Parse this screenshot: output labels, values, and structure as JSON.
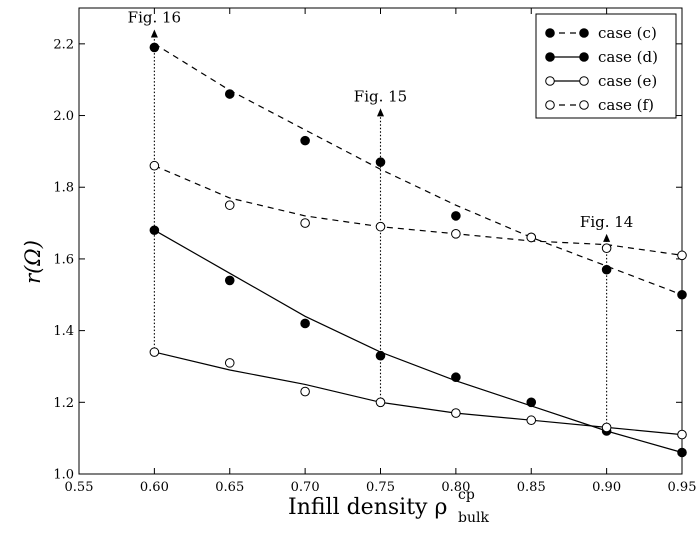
{
  "chart_data": {
    "type": "line",
    "xlabel": "Infill density ρ",
    "xlabel_sup": "cp",
    "xlabel_sub": "bulk",
    "ylabel": "r(Ω)",
    "xlim": [
      0.55,
      0.95
    ],
    "ylim": [
      1.0,
      2.3
    ],
    "xticks": [
      0.55,
      0.6,
      0.65,
      0.7,
      0.75,
      0.8,
      0.85,
      0.9,
      0.95
    ],
    "xtick_labels": [
      "0.55",
      "0.60",
      "0.65",
      "0.70",
      "0.75",
      "0.80",
      "0.85",
      "0.90",
      "0.95"
    ],
    "yticks": [
      1.0,
      1.2,
      1.4,
      1.6,
      1.8,
      2.0,
      2.2
    ],
    "ytick_labels": [
      "1.0",
      "1.2",
      "1.4",
      "1.6",
      "1.8",
      "2.0",
      "2.2"
    ],
    "grid": false,
    "legend_position": "top-right",
    "series": [
      {
        "name": "case (c)",
        "marker": "filled",
        "line": "dashed",
        "points": [
          [
            0.6,
            2.19
          ],
          [
            0.65,
            2.06
          ],
          [
            0.7,
            1.93
          ],
          [
            0.75,
            1.87
          ],
          [
            0.8,
            1.72
          ],
          [
            0.85,
            1.66
          ],
          [
            0.9,
            1.57
          ],
          [
            0.95,
            1.5
          ]
        ],
        "fit": [
          [
            0.6,
            2.2
          ],
          [
            0.65,
            2.07
          ],
          [
            0.7,
            1.96
          ],
          [
            0.75,
            1.85
          ],
          [
            0.8,
            1.75
          ],
          [
            0.85,
            1.66
          ],
          [
            0.9,
            1.58
          ],
          [
            0.95,
            1.5
          ]
        ]
      },
      {
        "name": "case (d)",
        "marker": "filled",
        "line": "solid",
        "points": [
          [
            0.6,
            1.68
          ],
          [
            0.65,
            1.54
          ],
          [
            0.7,
            1.42
          ],
          [
            0.75,
            1.33
          ],
          [
            0.8,
            1.27
          ],
          [
            0.85,
            1.2
          ],
          [
            0.9,
            1.12
          ],
          [
            0.95,
            1.06
          ]
        ],
        "fit": [
          [
            0.6,
            1.68
          ],
          [
            0.65,
            1.56
          ],
          [
            0.7,
            1.44
          ],
          [
            0.75,
            1.34
          ],
          [
            0.8,
            1.26
          ],
          [
            0.85,
            1.19
          ],
          [
            0.9,
            1.12
          ],
          [
            0.95,
            1.06
          ]
        ]
      },
      {
        "name": "case (e)",
        "marker": "open",
        "line": "solid",
        "points": [
          [
            0.6,
            1.34
          ],
          [
            0.65,
            1.31
          ],
          [
            0.7,
            1.23
          ],
          [
            0.75,
            1.2
          ],
          [
            0.8,
            1.17
          ],
          [
            0.85,
            1.15
          ],
          [
            0.9,
            1.13
          ],
          [
            0.95,
            1.11
          ]
        ],
        "fit": [
          [
            0.6,
            1.34
          ],
          [
            0.65,
            1.29
          ],
          [
            0.7,
            1.25
          ],
          [
            0.75,
            1.2
          ],
          [
            0.8,
            1.17
          ],
          [
            0.85,
            1.15
          ],
          [
            0.9,
            1.13
          ],
          [
            0.95,
            1.11
          ]
        ]
      },
      {
        "name": "case (f)",
        "marker": "open",
        "line": "dashed",
        "points": [
          [
            0.6,
            1.86
          ],
          [
            0.65,
            1.75
          ],
          [
            0.7,
            1.7
          ],
          [
            0.75,
            1.69
          ],
          [
            0.8,
            1.67
          ],
          [
            0.85,
            1.66
          ],
          [
            0.9,
            1.63
          ],
          [
            0.95,
            1.61
          ]
        ],
        "fit": [
          [
            0.6,
            1.86
          ],
          [
            0.65,
            1.77
          ],
          [
            0.7,
            1.72
          ],
          [
            0.75,
            1.69
          ],
          [
            0.8,
            1.67
          ],
          [
            0.85,
            1.65
          ],
          [
            0.9,
            1.64
          ],
          [
            0.95,
            1.61
          ]
        ]
      }
    ],
    "annotations": [
      {
        "text": "Fig. 16",
        "x": 0.6,
        "y_from": 1.34,
        "y_to": 2.24
      },
      {
        "text": "Fig. 15",
        "x": 0.75,
        "y_from": 1.2,
        "y_to": 2.02
      },
      {
        "text": "Fig. 14",
        "x": 0.9,
        "y_from": 1.13,
        "y_to": 1.67
      }
    ]
  }
}
